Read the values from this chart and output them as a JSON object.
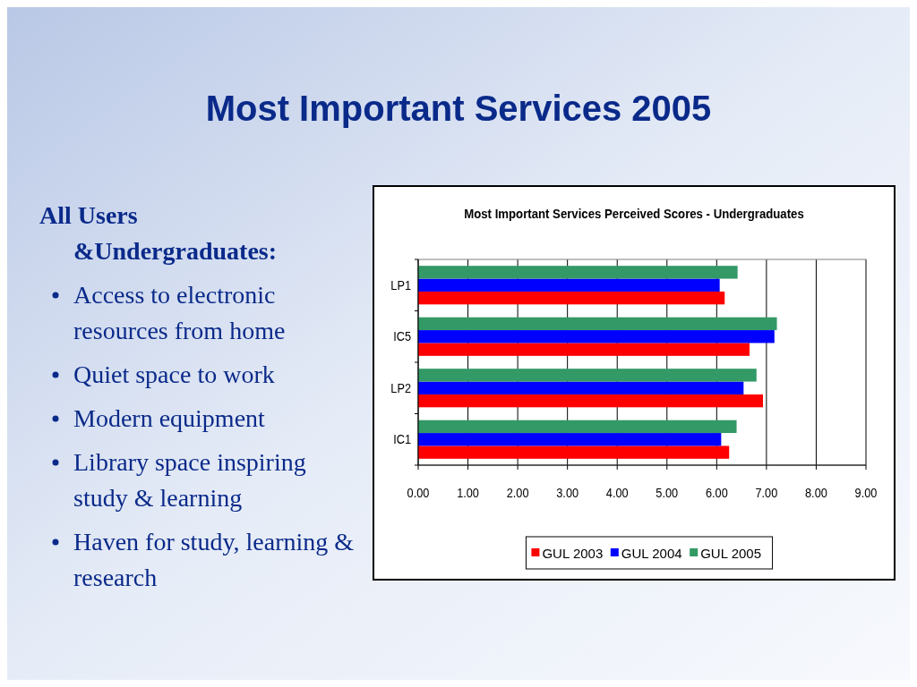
{
  "chart_data": [
    {
      "type": "other",
      "title": "Most Important Services 2005",
      "annotations": [
        "All Users &Undergraduates:",
        "Access to electronic resources from home",
        "Quiet space to work",
        "Modern equipment",
        "Library space inspiring study & learning",
        "Haven for study, learning & research"
      ]
    },
    {
      "type": "bar",
      "orientation": "horizontal",
      "title": "Most Important Services Perceived Scores - Undergraduates",
      "categories": [
        "LP1",
        "IC5",
        "LP2",
        "IC1"
      ],
      "series": [
        {
          "name": "GUL 2003",
          "color": "#ff0000",
          "values": [
            6.16,
            6.66,
            6.93,
            6.25
          ]
        },
        {
          "name": "GUL 2004",
          "color": "#0000ff",
          "values": [
            6.06,
            7.16,
            6.54,
            6.09
          ]
        },
        {
          "name": "GUL 2005",
          "color": "#339966",
          "values": [
            6.42,
            7.21,
            6.8,
            6.4
          ]
        }
      ],
      "xlim": [
        0,
        9
      ],
      "xticks": [
        {
          "value": 0,
          "label": "0.00"
        },
        {
          "value": 1,
          "label": "1.00"
        },
        {
          "value": 2,
          "label": "2.00"
        },
        {
          "value": 3,
          "label": "3.00"
        },
        {
          "value": 4,
          "label": "4.00"
        },
        {
          "value": 5,
          "label": "5.00"
        },
        {
          "value": 6,
          "label": "6.00"
        },
        {
          "value": 7,
          "label": "7.00"
        },
        {
          "value": 8,
          "label": "8.00"
        },
        {
          "value": 9,
          "label": "9.00"
        }
      ],
      "grid": "x",
      "legend": "bottom"
    }
  ]
}
